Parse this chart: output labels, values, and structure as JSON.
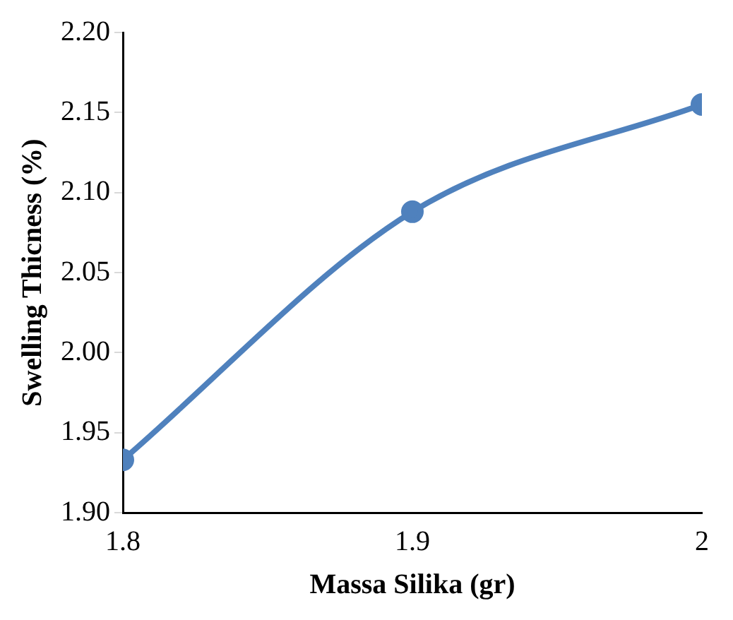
{
  "chart_data": {
    "type": "line",
    "xlabel": "Massa Silika (gr)",
    "ylabel": "Swelling Thicness (%)",
    "x": [
      1.8,
      1.9,
      2
    ],
    "series": [
      {
        "color": "#4f81bd",
        "values": [
          1.933,
          2.088,
          2.155
        ]
      }
    ],
    "marker": "circle",
    "grid": false,
    "legend": false,
    "xlim": [
      1.8,
      2
    ],
    "xticks": [
      1.8,
      1.9,
      2
    ],
    "ylim": [
      1.9,
      2.2
    ],
    "yticks": [
      {
        "value": 1.9,
        "label": "1.90"
      },
      {
        "value": 1.95,
        "label": "1.95"
      },
      {
        "value": 2,
        "label": "2.00"
      },
      {
        "value": 2.05,
        "label": "2.05"
      },
      {
        "value": 2.1,
        "label": "2.10"
      },
      {
        "value": 2.15,
        "label": "2.15"
      },
      {
        "value": 2.2,
        "label": "2.20"
      }
    ]
  }
}
